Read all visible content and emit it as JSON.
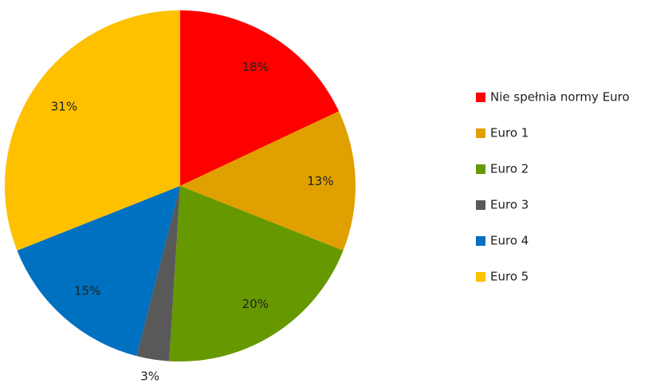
{
  "chart_data": {
    "type": "pie",
    "categories": [
      "Nie spełnia normy Euro",
      "Euro 1",
      "Euro 2",
      "Euro 3",
      "Euro 4",
      "Euro 5"
    ],
    "values": [
      18,
      13,
      20,
      3,
      15,
      31
    ],
    "value_labels": [
      "18%",
      "13%",
      "20%",
      "3%",
      "15%",
      "31%"
    ],
    "colors": [
      "#ff0000",
      "#e0a000",
      "#669900",
      "#595959",
      "#0070c0",
      "#ffc000"
    ],
    "legend": "right"
  }
}
